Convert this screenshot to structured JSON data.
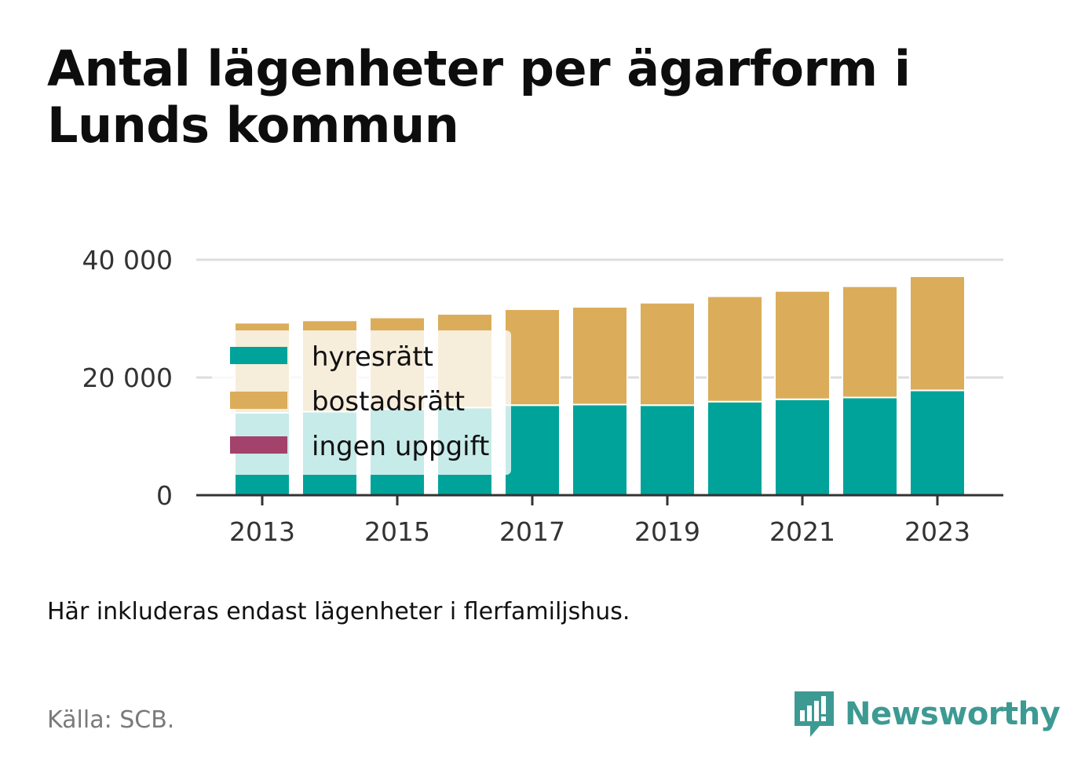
{
  "title": "Antal lägenheter per ägarform i Lunds kommun",
  "note": "Här inkluderas endast lägenheter i flerfamiljshus.",
  "source": "Källa: SCB.",
  "brand": {
    "name": "Newsworthy",
    "icon": "newsworthy-logo-icon",
    "color": "#3d9a93"
  },
  "chart_data": {
    "type": "bar",
    "stacked": true,
    "categories": [
      "2013",
      "2014",
      "2015",
      "2016",
      "2017",
      "2018",
      "2019",
      "2020",
      "2021",
      "2022",
      "2023"
    ],
    "x_tick_labels": [
      "2013",
      "2015",
      "2017",
      "2019",
      "2021",
      "2023"
    ],
    "series": [
      {
        "name": "hyresrätt",
        "color": "#00a39a",
        "values": [
          14000,
          14200,
          14600,
          14900,
          15300,
          15400,
          15300,
          15900,
          16300,
          16600,
          17800
        ]
      },
      {
        "name": "bostadsrätt",
        "color": "#dbad5a",
        "values": [
          15300,
          15500,
          15600,
          15900,
          16300,
          16600,
          17400,
          17900,
          18400,
          18900,
          19400
        ]
      },
      {
        "name": "ingen uppgift",
        "color": "#a3426a",
        "values": [
          0,
          0,
          0,
          0,
          0,
          0,
          0,
          0,
          0,
          0,
          0
        ]
      }
    ],
    "ylim": [
      0,
      40000
    ],
    "y_ticks": [
      0,
      20000,
      40000
    ],
    "y_tick_labels": [
      "0",
      "20 000",
      "40 000"
    ],
    "grid": true,
    "legend_position": "bottom-left inside plot",
    "xlabel": "",
    "ylabel": ""
  }
}
